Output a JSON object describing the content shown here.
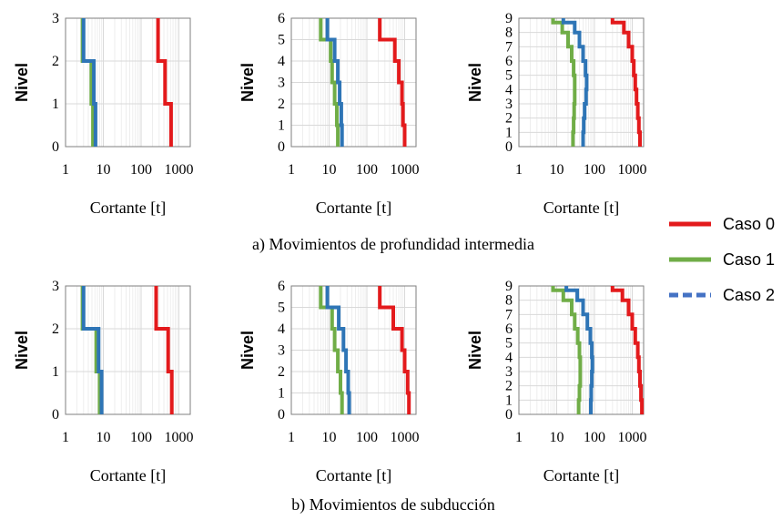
{
  "colors": {
    "caso0": "#e31a1c",
    "caso1": "#70ad47",
    "caso2": "#2e75b6",
    "caso2_legend": "#4472c4"
  },
  "legend": {
    "items": [
      "Caso 0",
      "Caso 1",
      "Caso 2"
    ]
  },
  "captions": [
    "a) Movimientos de profundidad intermedia",
    "b) Movimientos de subducción"
  ],
  "chart_data": [
    {
      "type": "line",
      "group": "a",
      "ylabel": "Nivel",
      "xlabel": "Cortante [t]",
      "x_scale": "log",
      "xlim": [
        1,
        2000
      ],
      "ylim": [
        0,
        3
      ],
      "x_ticks": [
        "1",
        "10",
        "100",
        "1000"
      ],
      "y_ticks": [
        "0",
        "1",
        "2",
        "3"
      ],
      "series": [
        {
          "name": "Caso 0",
          "x": [
            620,
            620,
            430,
            430,
            280,
            280
          ],
          "y": [
            0,
            1,
            1,
            2,
            2,
            3
          ]
        },
        {
          "name": "Caso 1",
          "x": [
            5.3,
            5.3,
            4.8,
            4.8,
            2.8,
            2.8
          ],
          "y": [
            0,
            1,
            1,
            2,
            2,
            3
          ]
        },
        {
          "name": "Caso 2",
          "x": [
            6.2,
            6.2,
            5.6,
            5.6,
            3.0,
            3.0
          ],
          "y": [
            0,
            1,
            1,
            2,
            2,
            3
          ]
        }
      ]
    },
    {
      "type": "line",
      "group": "a",
      "ylabel": "Nivel",
      "xlabel": "Cortante [t]",
      "x_scale": "log",
      "xlim": [
        1,
        2000
      ],
      "ylim": [
        0,
        6
      ],
      "x_ticks": [
        "1",
        "10",
        "100",
        "1000"
      ],
      "y_ticks": [
        "0",
        "1",
        "2",
        "3",
        "4",
        "5",
        "6"
      ],
      "series": [
        {
          "name": "Caso 0",
          "x": [
            1000,
            1000,
            900,
            900,
            850,
            850,
            700,
            700,
            550,
            550,
            220,
            220
          ],
          "y": [
            0,
            1,
            1,
            2,
            2,
            3,
            3,
            4,
            4,
            5,
            5,
            6
          ]
        },
        {
          "name": "Caso 1",
          "x": [
            17,
            17,
            16,
            16,
            14,
            14,
            12,
            12,
            11,
            11,
            6,
            6
          ],
          "y": [
            0,
            1,
            1,
            2,
            2,
            3,
            3,
            4,
            4,
            5,
            5,
            6
          ]
        },
        {
          "name": "Caso 2",
          "x": [
            22,
            22,
            21,
            21,
            19,
            19,
            17,
            17,
            14,
            14,
            9,
            9
          ],
          "y": [
            0,
            1,
            1,
            2,
            2,
            3,
            3,
            4,
            4,
            5,
            5,
            6
          ]
        }
      ]
    },
    {
      "type": "line",
      "group": "a",
      "ylabel": "Nivel",
      "xlabel": "Cortante [t]",
      "x_scale": "log",
      "xlim": [
        1,
        2000
      ],
      "ylim": [
        0,
        9
      ],
      "x_ticks": [
        "1",
        "10",
        "100",
        "1000"
      ],
      "y_ticks": [
        "0",
        "1",
        "2",
        "3",
        "4",
        "5",
        "6",
        "7",
        "8",
        "9"
      ],
      "series": [
        {
          "name": "Caso 0",
          "x": [
            1600,
            1600,
            1500,
            1500,
            1400,
            1400,
            1300,
            1300,
            1200,
            1200,
            1100,
            1100,
            1000,
            1000,
            800,
            800,
            600,
            600,
            300,
            300
          ],
          "y": [
            0,
            1,
            1,
            2,
            2,
            3,
            3,
            4,
            4,
            5,
            5,
            6,
            6,
            7,
            7,
            8,
            8,
            8.7,
            8.7,
            9
          ]
        },
        {
          "name": "Caso 1",
          "x": [
            27,
            27,
            28,
            28,
            29,
            29,
            30,
            30,
            30,
            30,
            28,
            28,
            25,
            25,
            20,
            20,
            14,
            14,
            8,
            8
          ],
          "y": [
            0,
            1,
            1,
            2,
            2,
            3,
            3,
            4,
            4,
            5,
            5,
            6,
            6,
            7,
            7,
            8,
            8,
            8.7,
            8.7,
            9
          ]
        },
        {
          "name": "Caso 2",
          "x": [
            50,
            50,
            52,
            52,
            55,
            55,
            60,
            60,
            62,
            62,
            58,
            58,
            50,
            50,
            40,
            40,
            30,
            30,
            15,
            15
          ],
          "y": [
            0,
            1,
            1,
            2,
            2,
            3,
            3,
            4,
            4,
            5,
            5,
            6,
            6,
            7,
            7,
            8,
            8,
            8.7,
            8.7,
            9
          ]
        }
      ]
    },
    {
      "type": "line",
      "group": "b",
      "ylabel": "Nivel",
      "xlabel": "Cortante [t]",
      "x_scale": "log",
      "xlim": [
        1,
        2000
      ],
      "ylim": [
        0,
        3
      ],
      "x_ticks": [
        "1",
        "10",
        "100",
        "1000"
      ],
      "y_ticks": [
        "0",
        "1",
        "2",
        "3"
      ],
      "series": [
        {
          "name": "Caso 0",
          "x": [
            650,
            650,
            520,
            520,
            250,
            250
          ],
          "y": [
            0,
            1,
            1,
            2,
            2,
            3
          ]
        },
        {
          "name": "Caso 1",
          "x": [
            8,
            8,
            6.5,
            6.5,
            2.8,
            2.8
          ],
          "y": [
            0,
            1,
            1,
            2,
            2,
            3
          ]
        },
        {
          "name": "Caso 2",
          "x": [
            9,
            9,
            7.5,
            7.5,
            3.0,
            3.0
          ],
          "y": [
            0,
            1,
            1,
            2,
            2,
            3
          ]
        }
      ]
    },
    {
      "type": "line",
      "group": "b",
      "ylabel": "Nivel",
      "xlabel": "Cortante [t]",
      "x_scale": "log",
      "xlim": [
        1,
        2000
      ],
      "ylim": [
        0,
        6
      ],
      "x_ticks": [
        "1",
        "10",
        "100",
        "1000"
      ],
      "y_ticks": [
        "0",
        "1",
        "2",
        "3",
        "4",
        "5",
        "6"
      ],
      "series": [
        {
          "name": "Caso 0",
          "x": [
            1300,
            1300,
            1200,
            1200,
            1000,
            1000,
            850,
            850,
            500,
            500,
            220,
            220
          ],
          "y": [
            0,
            1,
            1,
            2,
            2,
            3,
            3,
            4,
            4,
            5,
            5,
            6
          ]
        },
        {
          "name": "Caso 1",
          "x": [
            22,
            22,
            20,
            20,
            17,
            17,
            14,
            14,
            12,
            12,
            6,
            6
          ],
          "y": [
            0,
            1,
            1,
            2,
            2,
            3,
            3,
            4,
            4,
            5,
            5,
            6
          ]
        },
        {
          "name": "Caso 2",
          "x": [
            34,
            34,
            32,
            32,
            28,
            28,
            24,
            24,
            18,
            18,
            9,
            9
          ],
          "y": [
            0,
            1,
            1,
            2,
            2,
            3,
            3,
            4,
            4,
            5,
            5,
            6
          ]
        }
      ]
    },
    {
      "type": "line",
      "group": "b",
      "ylabel": "Nivel",
      "xlabel": "Cortante [t]",
      "x_scale": "log",
      "xlim": [
        1,
        2000
      ],
      "ylim": [
        0,
        9
      ],
      "x_ticks": [
        "1",
        "10",
        "100",
        "1000"
      ],
      "y_ticks": [
        "0",
        "1",
        "2",
        "3",
        "4",
        "5",
        "6",
        "7",
        "8",
        "9"
      ],
      "series": [
        {
          "name": "Caso 0",
          "x": [
            1800,
            1800,
            1700,
            1700,
            1600,
            1600,
            1500,
            1500,
            1400,
            1400,
            1200,
            1200,
            1000,
            1000,
            800,
            800,
            550,
            550,
            300,
            300
          ],
          "y": [
            0,
            1,
            1,
            2,
            2,
            3,
            3,
            4,
            4,
            5,
            5,
            6,
            6,
            7,
            7,
            8,
            8,
            8.7,
            8.7,
            9
          ]
        },
        {
          "name": "Caso 1",
          "x": [
            38,
            38,
            40,
            40,
            42,
            42,
            42,
            42,
            40,
            40,
            36,
            36,
            30,
            30,
            25,
            25,
            15,
            15,
            8,
            8
          ],
          "y": [
            0,
            1,
            1,
            2,
            2,
            3,
            3,
            4,
            4,
            5,
            5,
            6,
            6,
            7,
            7,
            8,
            8,
            8.7,
            8.7,
            9
          ]
        },
        {
          "name": "Caso 2",
          "x": [
            80,
            80,
            82,
            82,
            85,
            85,
            88,
            88,
            85,
            85,
            78,
            78,
            65,
            65,
            50,
            50,
            35,
            35,
            18,
            18
          ],
          "y": [
            0,
            1,
            1,
            2,
            2,
            3,
            3,
            4,
            4,
            5,
            5,
            6,
            6,
            7,
            7,
            8,
            8,
            8.7,
            8.7,
            9
          ]
        }
      ]
    }
  ]
}
